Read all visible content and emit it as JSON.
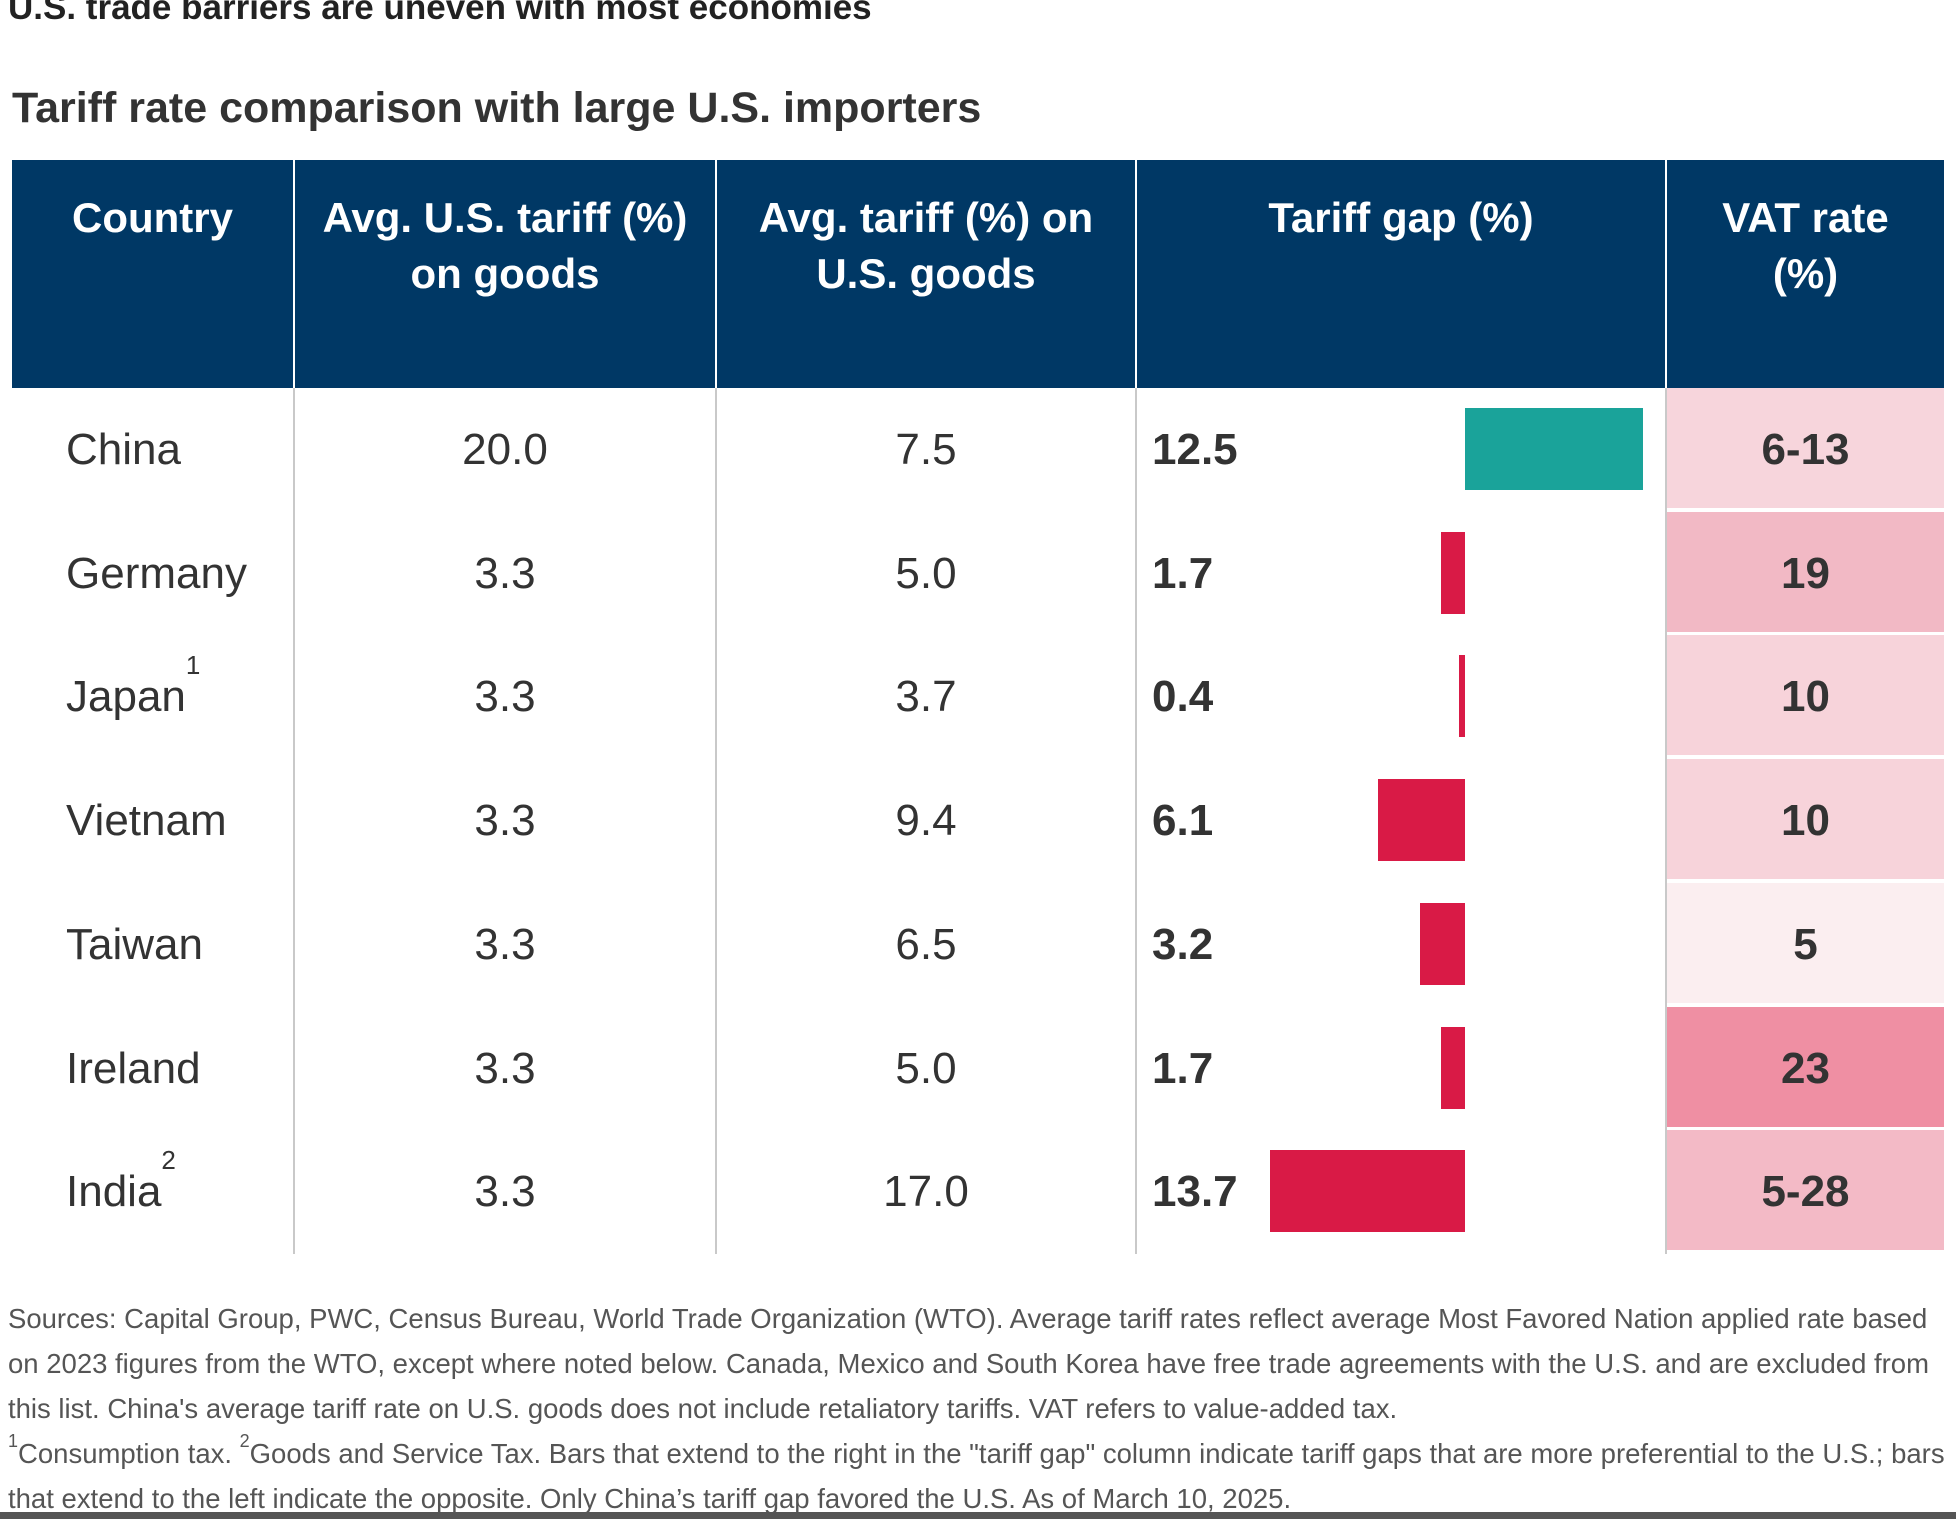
{
  "chart_data": {
    "type": "table",
    "title": "U.S. trade barriers are uneven with most economies",
    "subtitle": "Tariff rate comparison with large U.S. importers",
    "columns": [
      "Country",
      "Avg. U.S. tariff (%) on goods",
      "Avg. tariff (%) on U.S. goods",
      "Tariff gap (%)",
      "VAT rate (%)"
    ],
    "rows": [
      {
        "country": "China",
        "note": "",
        "us_tariff": "20.0",
        "tariff_on_us": "7.5",
        "gap": "12.5",
        "gap_value": 12.5,
        "vat": "6-13",
        "vat_color": "#f7d5dc",
        "bar_color": "#1aa39a"
      },
      {
        "country": "Germany",
        "note": "",
        "us_tariff": "3.3",
        "tariff_on_us": "5.0",
        "gap": "1.7",
        "gap_value": -1.7,
        "vat": "19",
        "vat_color": "#f2b9c5",
        "bar_color": "#d91a46"
      },
      {
        "country": "Japan",
        "note": "1",
        "us_tariff": "3.3",
        "tariff_on_us": "3.7",
        "gap": "0.4",
        "gap_value": -0.4,
        "vat": "10",
        "vat_color": "#f7d3da",
        "bar_color": "#d91a46"
      },
      {
        "country": "Vietnam",
        "note": "",
        "us_tariff": "3.3",
        "tariff_on_us": "9.4",
        "gap": "6.1",
        "gap_value": -6.1,
        "vat": "10",
        "vat_color": "#f7d3da",
        "bar_color": "#d91a46"
      },
      {
        "country": "Taiwan",
        "note": "",
        "us_tariff": "3.3",
        "tariff_on_us": "6.5",
        "gap": "3.2",
        "gap_value": -3.2,
        "vat": "5",
        "vat_color": "#fbeef0",
        "bar_color": "#d91a46"
      },
      {
        "country": "Ireland",
        "note": "",
        "us_tariff": "3.3",
        "tariff_on_us": "5.0",
        "gap": "1.7",
        "gap_value": -1.7,
        "vat": "23",
        "vat_color": "#ef8fa3",
        "bar_color": "#d91a46"
      },
      {
        "country": "India",
        "note": "2",
        "us_tariff": "3.3",
        "tariff_on_us": "17.0",
        "gap": "13.7",
        "gap_value": -13.7,
        "vat": "5-28",
        "vat_color": "#f3bac6",
        "bar_color": "#d91a46"
      }
    ],
    "header_color": "#003865"
  },
  "footer": {
    "sources": "Sources: Capital Group, PWC, Census Bureau, World Trade Organization (WTO). Average tariff rates reflect average Most Favored Nation applied rate based on 2023 figures from the WTO, except where noted below. Canada, Mexico and South Korea have free trade agreements with the U.S. and are excluded from this list. China's average tariff rate on U.S. goods does not include retaliatory tariffs. VAT refers to value-added tax.",
    "note1_mark": "1",
    "note1": "Consumption tax. ",
    "note2_mark": "2",
    "note2": "Goods and Service Tax. Bars that extend to the right in the \"tariff gap\" column indicate tariff gaps that are more preferential to the U.S.; bars that extend to the left indicate the opposite. Only China’s tariff gap favored the U.S. As of March 10, 2025."
  }
}
